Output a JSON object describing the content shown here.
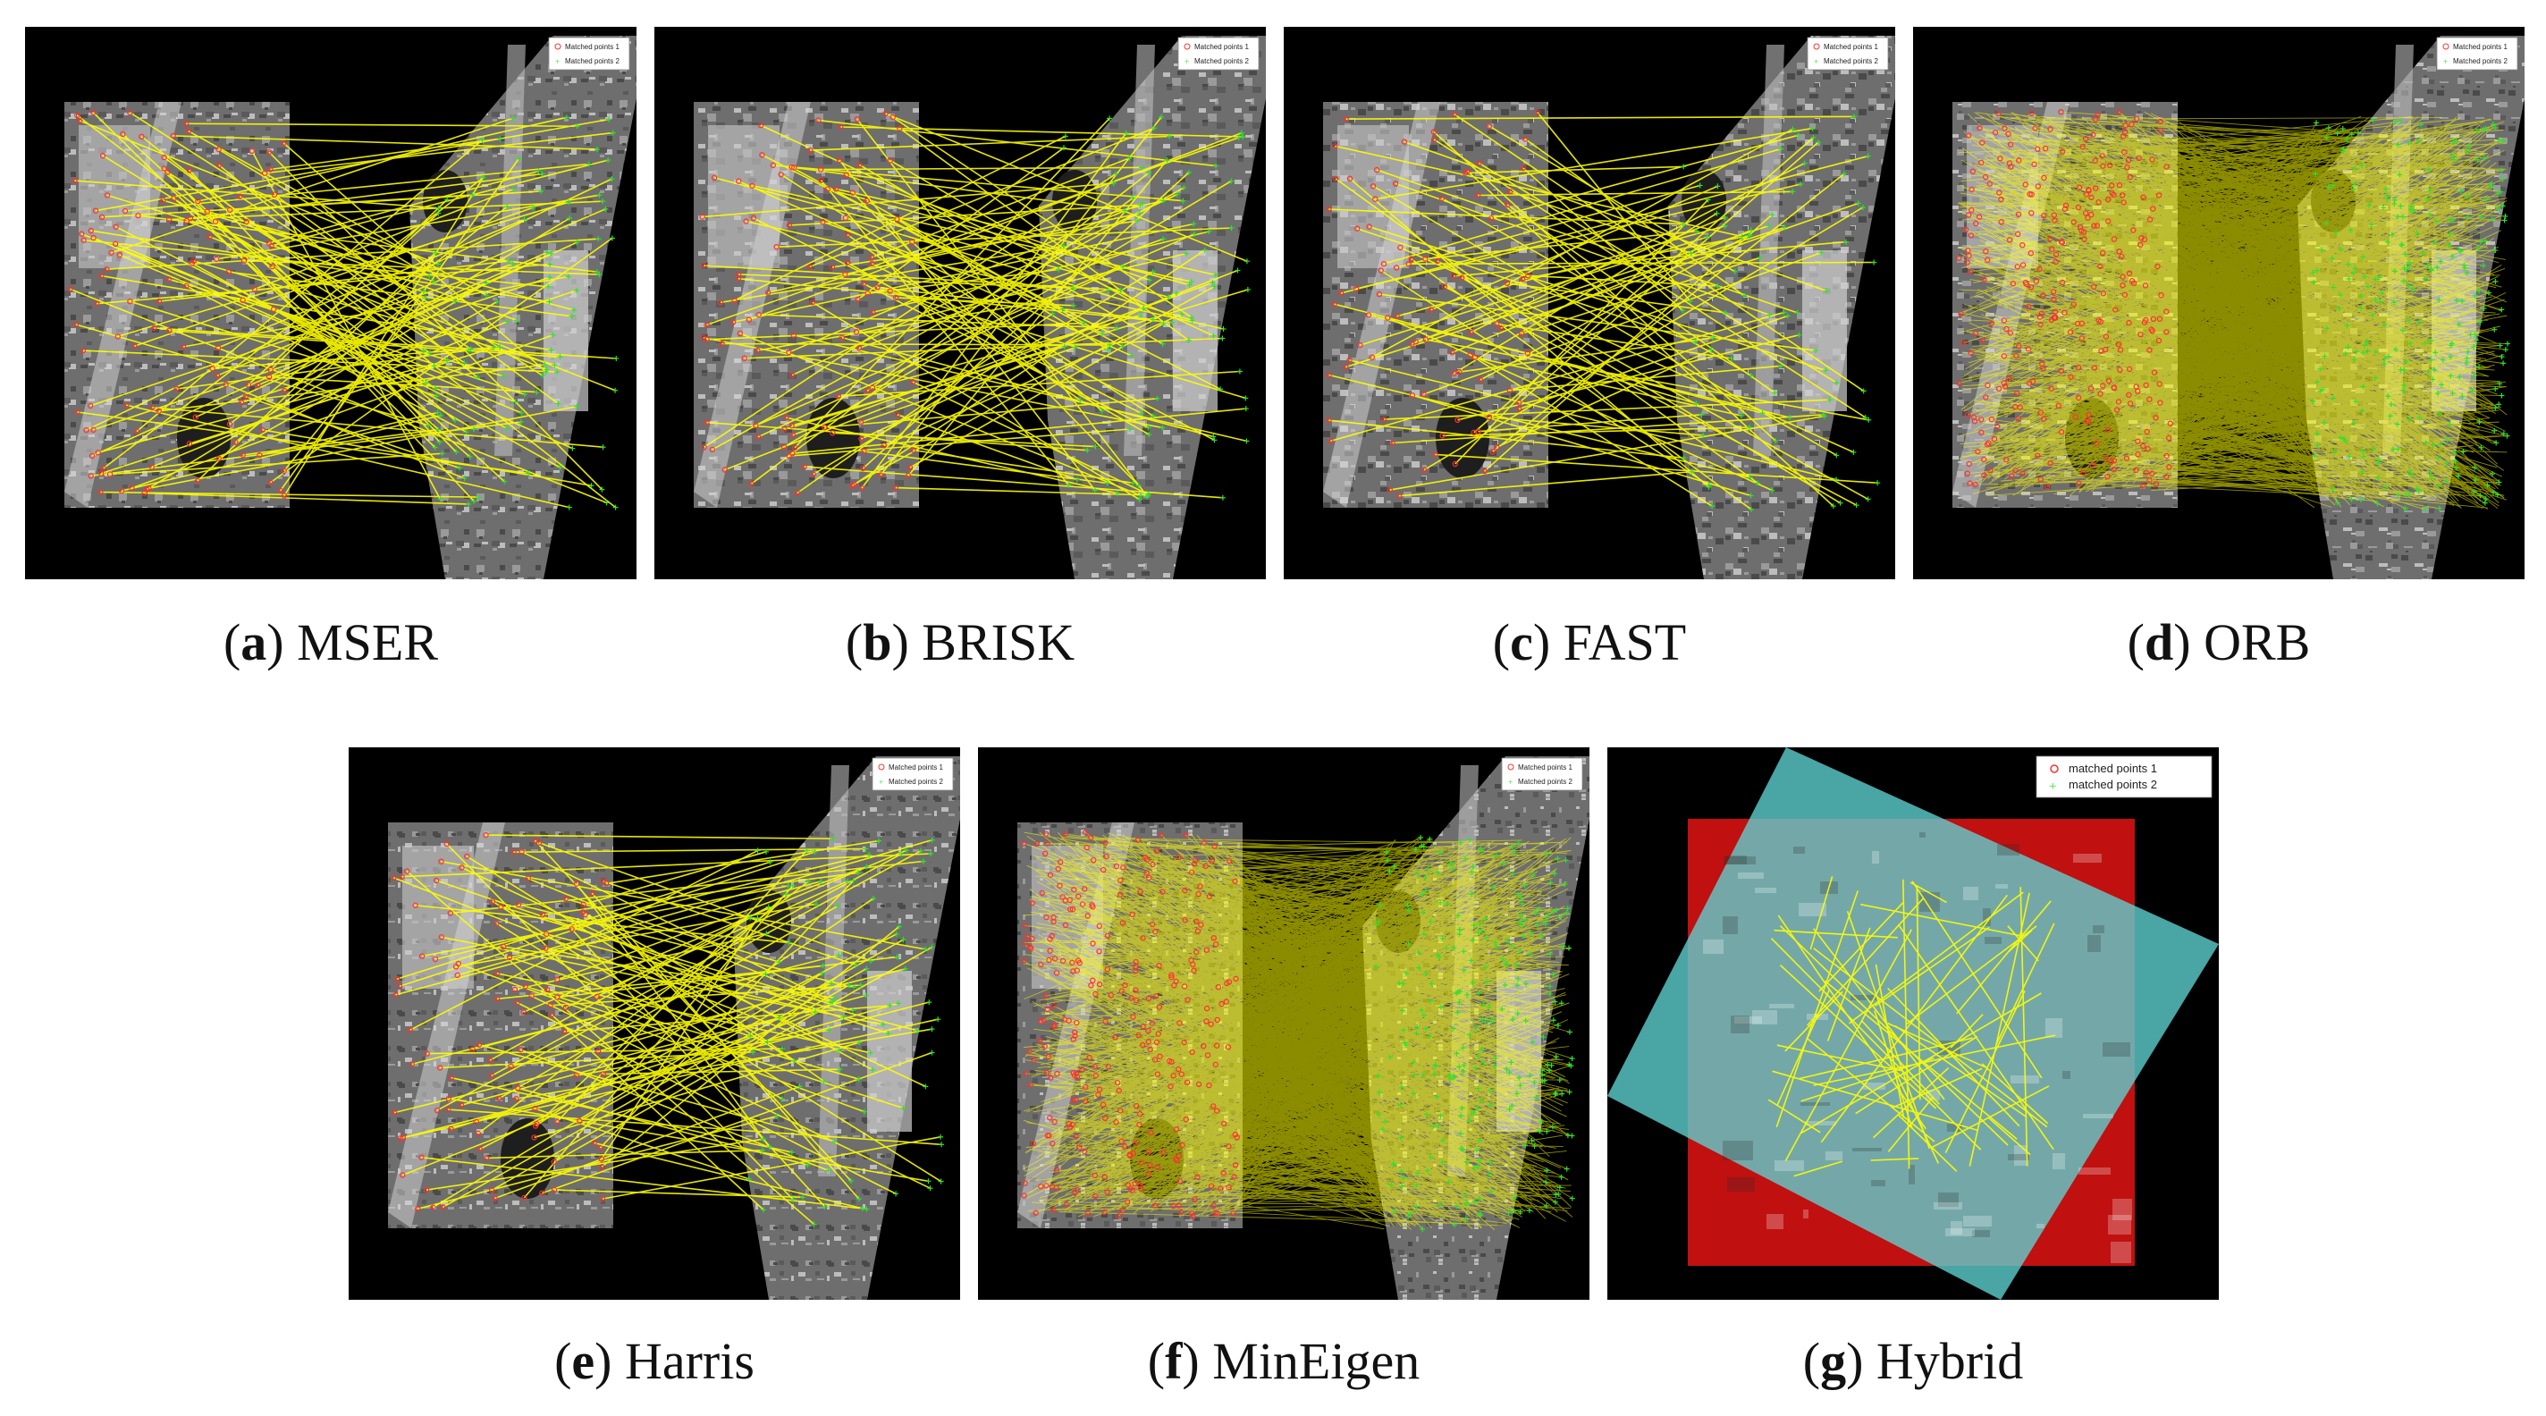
{
  "legend_default": {
    "label1": "Matched points 1",
    "label2": "Matched points 2"
  },
  "legend_hybrid": {
    "label1": "matched points 1",
    "label2": "matched points 2"
  },
  "panels": [
    {
      "id": "a",
      "name": "MSER",
      "density": 120,
      "style": "gray"
    },
    {
      "id": "b",
      "name": "BRISK",
      "density": 110,
      "style": "gray"
    },
    {
      "id": "c",
      "name": "FAST",
      "density": 90,
      "style": "gray"
    },
    {
      "id": "d",
      "name": "ORB",
      "density": 1400,
      "style": "gray"
    },
    {
      "id": "e",
      "name": "Harris",
      "density": 110,
      "style": "gray"
    },
    {
      "id": "f",
      "name": "MinEigen",
      "density": 1300,
      "style": "gray"
    },
    {
      "id": "g",
      "name": "Hybrid",
      "density": 60,
      "style": "hybrid"
    }
  ],
  "colors": {
    "match_line": "#ffff00",
    "points1": "#ff3030",
    "points2": "#30e030",
    "panel_bg": "#000000",
    "hybrid_red": "#c01010",
    "hybrid_cyan": "#5fd3d3"
  }
}
